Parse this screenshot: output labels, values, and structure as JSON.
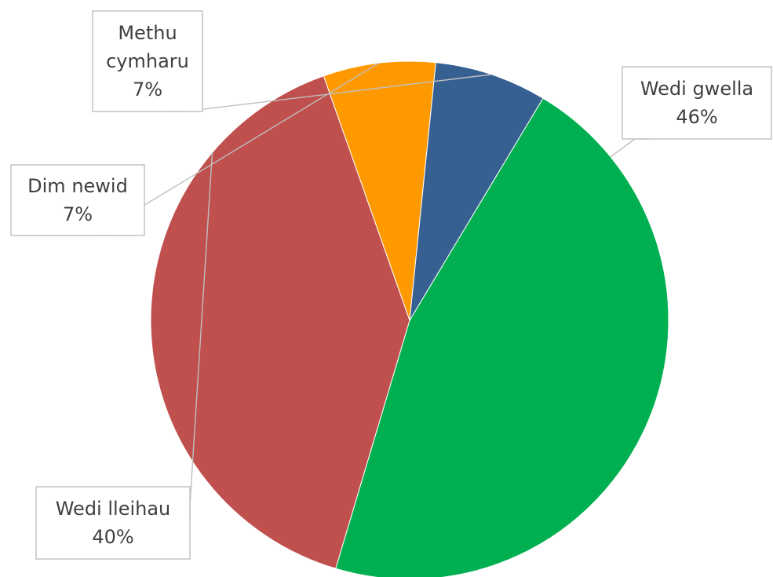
{
  "chart_data": {
    "type": "pie",
    "slices": [
      {
        "label": "Wedi gwella",
        "value": 46,
        "value_label": "46%",
        "color": "#00b050"
      },
      {
        "label": "Wedi lleihau",
        "value": 40,
        "value_label": "40%",
        "color": "#c0504d"
      },
      {
        "label": "Dim newid",
        "value": 7,
        "value_label": "7%",
        "color": "#ff9900"
      },
      {
        "label": "Methu cymharu",
        "value": 7,
        "value_label": "7%",
        "color": "#376092"
      }
    ],
    "start_angle_deg": -59,
    "direction": "clockwise"
  }
}
